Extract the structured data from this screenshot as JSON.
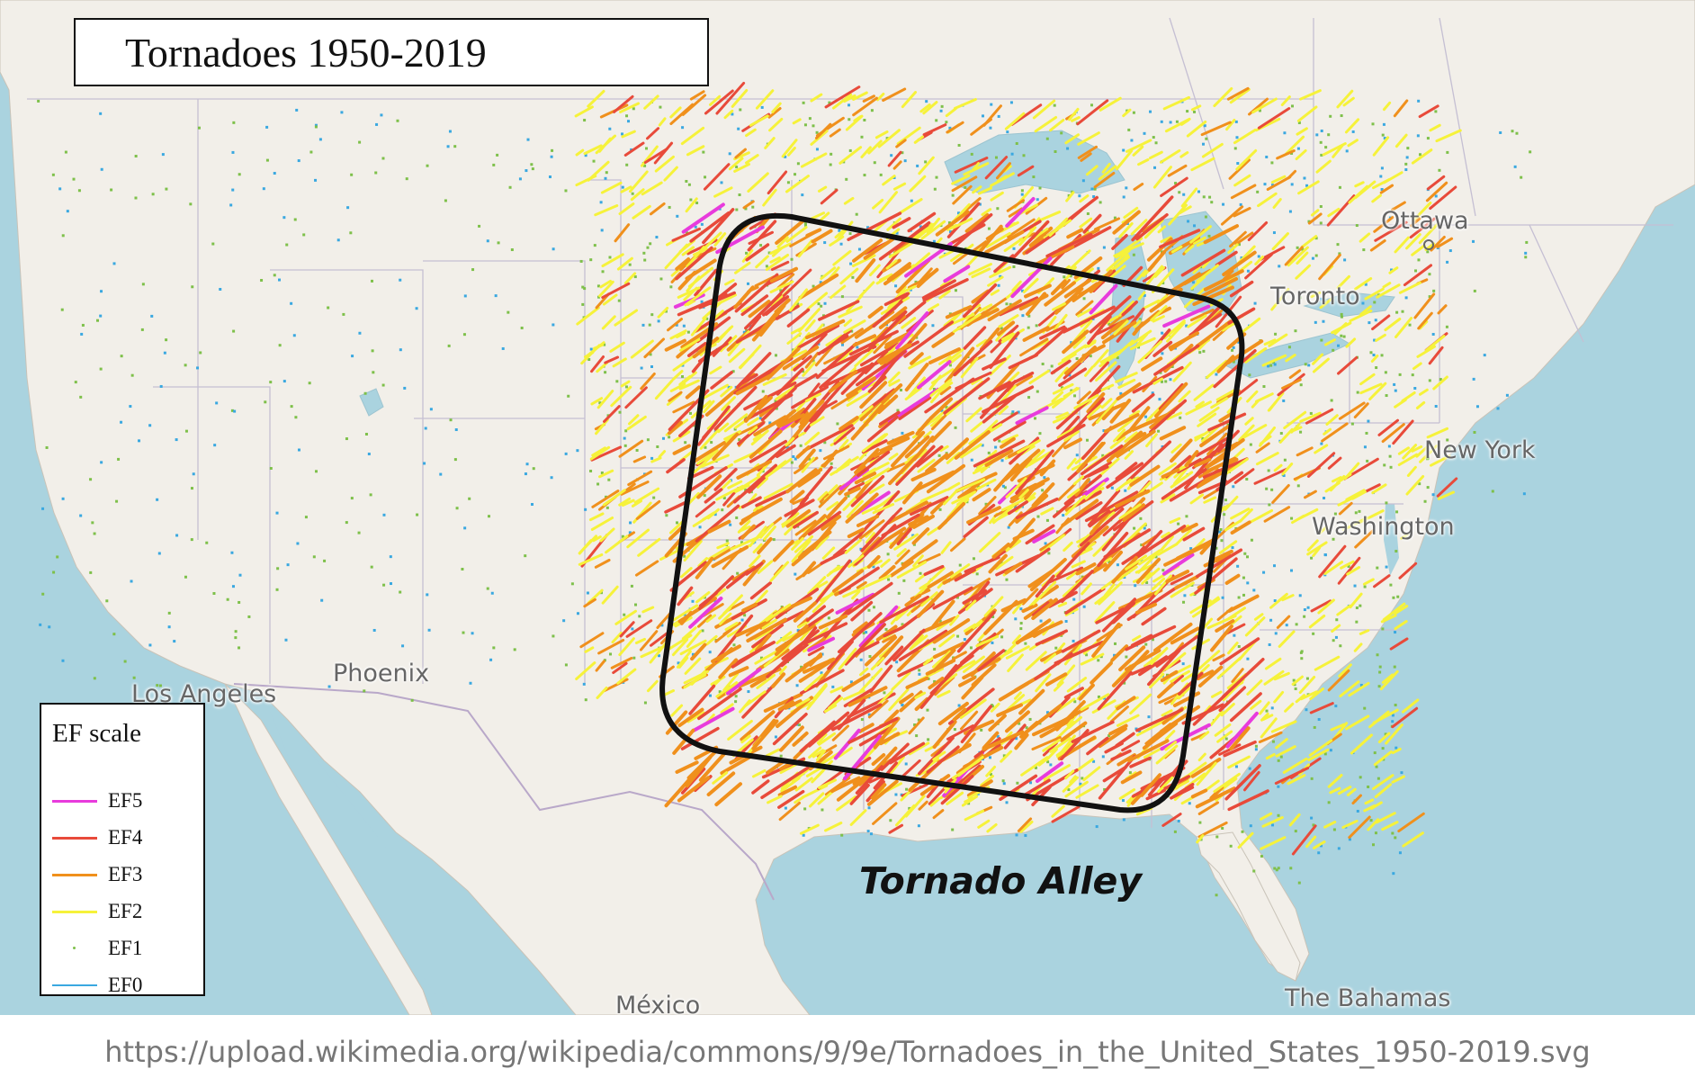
{
  "title": "Tornadoes 1950-2019",
  "legend": {
    "title": "EF scale",
    "items": [
      {
        "label": "EF5",
        "color": "#e83bdc",
        "style": "line"
      },
      {
        "label": "EF4",
        "color": "#e84a3a",
        "style": "line"
      },
      {
        "label": "EF3",
        "color": "#f0901c",
        "style": "line"
      },
      {
        "label": "EF2",
        "color": "#f6f23a",
        "style": "line"
      },
      {
        "label": "EF1",
        "color": "#7ec04a",
        "style": "dot"
      },
      {
        "label": "EF0",
        "color": "#3aa8e0",
        "style": "line"
      }
    ]
  },
  "annotation": "Tornado Alley",
  "cities": {
    "ottawa": "Ottawa",
    "toronto": "Toronto",
    "new_york": "New York",
    "washington": "Washington",
    "phoenix": "Phoenix",
    "los_angeles": "Los Angeles",
    "mexico": "México",
    "bahamas": "The Bahamas"
  },
  "source_url": "https://upload.wikimedia.org/wikipedia/commons/9/9e/Tornadoes_in_the_United_States_1950-2019.svg",
  "colors": {
    "water": "#aad3df",
    "land": "#f2efe9",
    "ef5": "#e83bdc",
    "ef4": "#e84a3a",
    "ef3": "#f0901c",
    "ef2": "#f6f23a",
    "ef1": "#7ec04a",
    "ef0": "#3aa8e0"
  }
}
